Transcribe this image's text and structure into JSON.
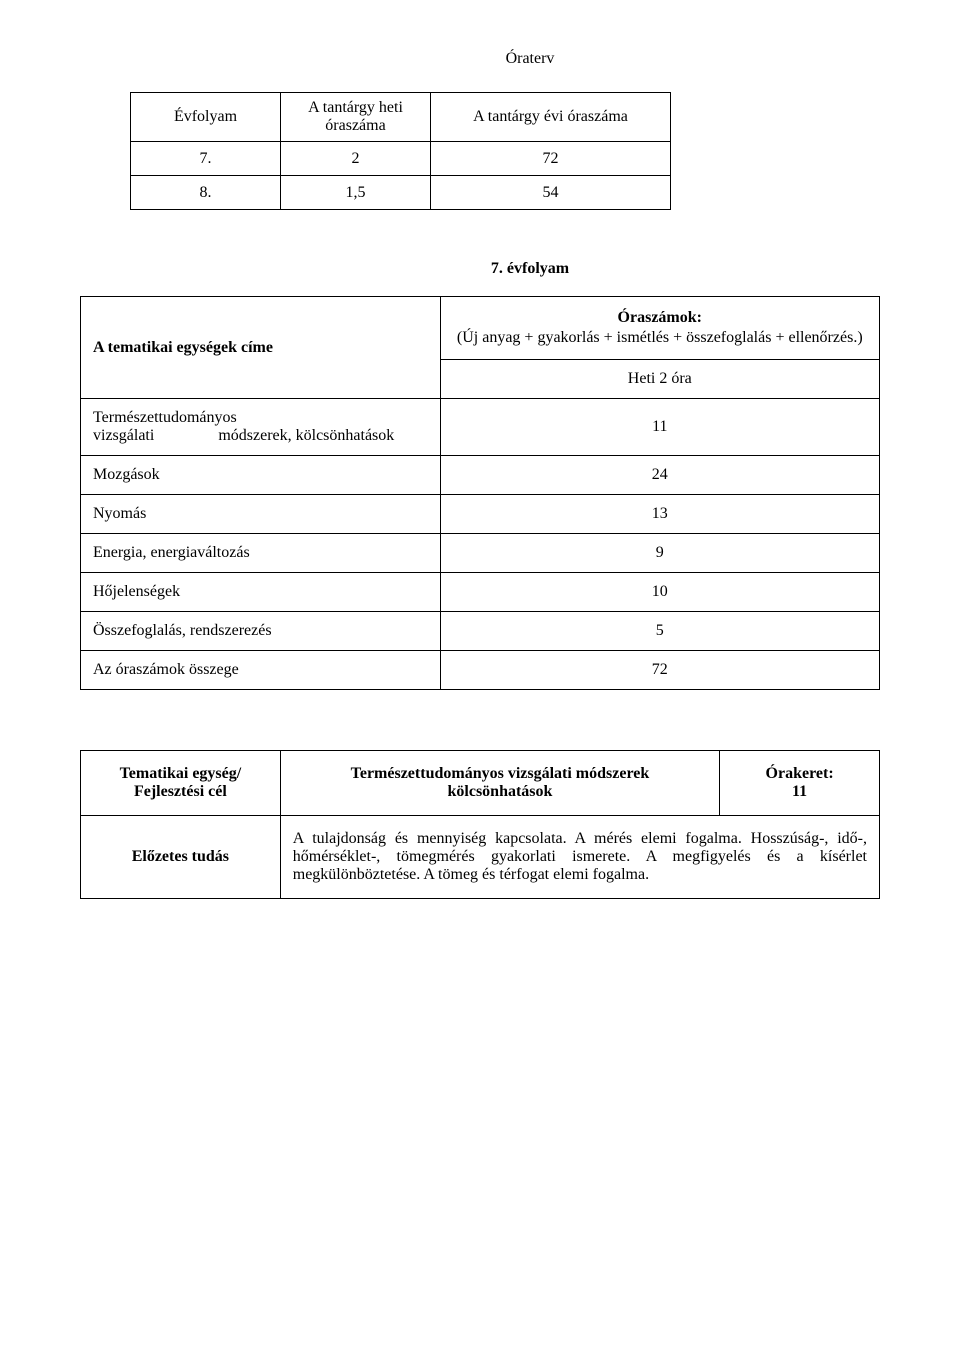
{
  "page_title": "Óraterv",
  "oraterv": {
    "headers": [
      "Évfolyam",
      "A tantárgy heti óraszáma",
      "A tantárgy évi óraszáma"
    ],
    "rows": [
      [
        "7.",
        "2",
        "72"
      ],
      [
        "8.",
        "1,5",
        "54"
      ]
    ]
  },
  "subsection_title": "7. évfolyam",
  "units_table": {
    "left_header": "A tematikai egységek címe",
    "oraszamok_title": "Óraszámok:",
    "oraszamok_desc": "(Új anyag + gyakorlás + ismétlés + összefoglalás + ellenőrzés.)",
    "heti_label": "Heti 2 óra",
    "rows": [
      {
        "label": "Természettudományos vizsgálati módszerek, kölcsönhatások",
        "value": "11"
      },
      {
        "label": "Mozgások",
        "value": "24"
      },
      {
        "label": "Nyomás",
        "value": "13"
      },
      {
        "label": "Energia, energiaváltozás",
        "value": "9"
      },
      {
        "label": "Hőjelenségek",
        "value": "10"
      },
      {
        "label": "Összefoglalás, rendszerezés",
        "value": "5"
      },
      {
        "label": "Az óraszámok összege",
        "value": "72"
      }
    ]
  },
  "tematikai": {
    "left_label_line1": "Tematikai egység/",
    "left_label_line2": "Fejlesztési cél",
    "center_line1": "Természettudományos vizsgálati módszerek",
    "center_line2": "kölcsönhatások",
    "right_line1": "Órakeret:",
    "right_line2": "11",
    "row2_left": "Előzetes tudás",
    "row2_body": "A tulajdonság és mennyiség kapcsolata. A mérés elemi fogalma. Hosszúság-, idő-, hőmérséklet-, tömegmérés gyakorlati ismerete. A megfigyelés és a kísérlet megkülönböztetése. A tömeg és térfogat elemi fogalma."
  }
}
